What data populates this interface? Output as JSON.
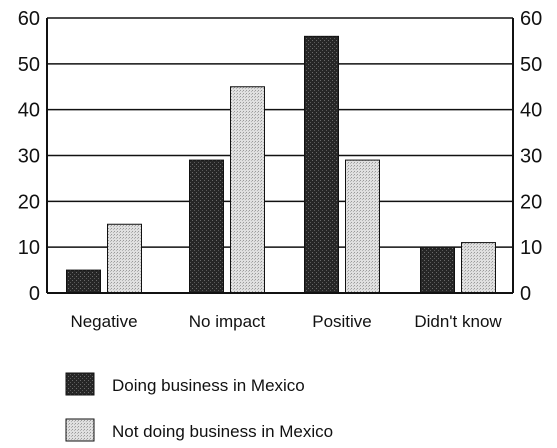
{
  "chart_data": {
    "type": "bar",
    "title": "",
    "xlabel": "",
    "ylabel": "",
    "categories": [
      "Negative",
      "No impact",
      "Positive",
      "Didn't know"
    ],
    "series": [
      {
        "name": "Doing business in Mexico",
        "values": [
          5,
          29,
          56,
          10
        ],
        "color": "#2a2a2a"
      },
      {
        "name": "Not doing business in Mexico",
        "values": [
          15,
          45,
          29,
          11
        ],
        "color": "#d2d2d2"
      }
    ],
    "ylim": [
      0,
      60
    ],
    "yticks": [
      "0",
      "10",
      "20",
      "30",
      "40",
      "50",
      "60"
    ],
    "right_axis_ticks": [
      "0",
      "10",
      "20",
      "30",
      "40",
      "50",
      "60"
    ],
    "grid": true,
    "legend_position": "bottom-left"
  }
}
